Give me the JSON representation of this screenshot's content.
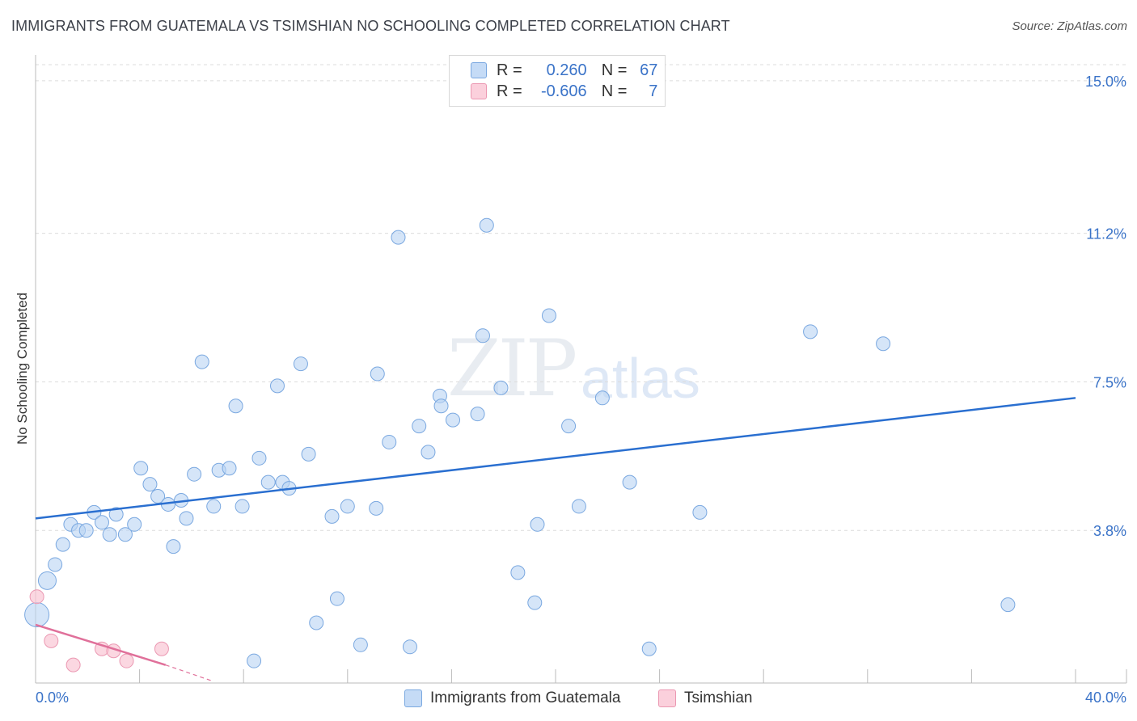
{
  "header": {
    "title": "IMMIGRANTS FROM GUATEMALA VS TSIMSHIAN NO SCHOOLING COMPLETED CORRELATION CHART",
    "source": "Source: ZipAtlas.com"
  },
  "watermark": {
    "zip": "ZIP",
    "atlas": "atlas"
  },
  "legend": {
    "rows": [
      {
        "r_label": "R =",
        "r_value": "0.260",
        "n_label": "N =",
        "n_value": "67",
        "color": "#a9c8f0"
      },
      {
        "r_label": "R =",
        "r_value": "-0.606",
        "n_label": "N =",
        "n_value": "7",
        "color": "#f5b8c8"
      }
    ]
  },
  "bottom_legend": {
    "series1": "Immigrants from Guatemala",
    "series2": "Tsimshian"
  },
  "colors": {
    "blue_fill": "#b9d3f3",
    "blue_stroke": "#7aa8e0",
    "blue_line": "#2a6fd0",
    "pink_fill": "#f9c6d4",
    "pink_stroke": "#eb98b2",
    "pink_line": "#e0709a",
    "axis_text": "#3a73c8"
  },
  "chart_data": {
    "type": "scatter",
    "title": "IMMIGRANTS FROM GUATEMALA VS TSIMSHIAN NO SCHOOLING COMPLETED CORRELATION CHART",
    "xlabel": "",
    "ylabel": "No Schooling Completed",
    "xlim": [
      0,
      40
    ],
    "ylim": [
      0,
      15.4
    ],
    "x_tick_labels": [
      "0.0%",
      "40.0%"
    ],
    "y_ticks": [
      3.8,
      7.5,
      11.2,
      15.0
    ],
    "y_tick_labels": [
      "3.8%",
      "7.5%",
      "11.2%",
      "15.0%"
    ],
    "grid": true,
    "series": [
      {
        "name": "Immigrants from Guatemala",
        "trend": {
          "x": [
            0,
            40
          ],
          "y": [
            4.1,
            7.1
          ]
        },
        "points": [
          {
            "x": 0.05,
            "y": 1.7,
            "s": 3
          },
          {
            "x": 0.45,
            "y": 2.55,
            "s": 2
          },
          {
            "x": 0.75,
            "y": 2.95,
            "s": 1
          },
          {
            "x": 1.05,
            "y": 3.45,
            "s": 1
          },
          {
            "x": 1.35,
            "y": 3.95,
            "s": 1
          },
          {
            "x": 1.65,
            "y": 3.8,
            "s": 1
          },
          {
            "x": 1.95,
            "y": 3.8,
            "s": 1
          },
          {
            "x": 2.25,
            "y": 4.25,
            "s": 1
          },
          {
            "x": 2.55,
            "y": 4.0,
            "s": 1
          },
          {
            "x": 2.85,
            "y": 3.7,
            "s": 1
          },
          {
            "x": 3.1,
            "y": 4.2,
            "s": 1
          },
          {
            "x": 3.45,
            "y": 3.7,
            "s": 1
          },
          {
            "x": 3.8,
            "y": 3.95,
            "s": 1
          },
          {
            "x": 4.05,
            "y": 5.35,
            "s": 1
          },
          {
            "x": 4.4,
            "y": 4.95,
            "s": 1
          },
          {
            "x": 4.7,
            "y": 4.65,
            "s": 1
          },
          {
            "x": 5.1,
            "y": 4.45,
            "s": 1
          },
          {
            "x": 5.3,
            "y": 3.4,
            "s": 1
          },
          {
            "x": 5.6,
            "y": 4.55,
            "s": 1
          },
          {
            "x": 5.8,
            "y": 4.1,
            "s": 1
          },
          {
            "x": 6.1,
            "y": 5.2,
            "s": 1
          },
          {
            "x": 6.4,
            "y": 8.0,
            "s": 1
          },
          {
            "x": 6.85,
            "y": 4.4,
            "s": 1
          },
          {
            "x": 7.05,
            "y": 5.3,
            "s": 1
          },
          {
            "x": 7.45,
            "y": 5.35,
            "s": 1
          },
          {
            "x": 7.7,
            "y": 6.9,
            "s": 1
          },
          {
            "x": 7.95,
            "y": 4.4,
            "s": 1
          },
          {
            "x": 8.4,
            "y": 0.55,
            "s": 1
          },
          {
            "x": 8.6,
            "y": 5.6,
            "s": 1
          },
          {
            "x": 8.95,
            "y": 5.0,
            "s": 1
          },
          {
            "x": 9.3,
            "y": 7.4,
            "s": 1
          },
          {
            "x": 9.5,
            "y": 5.0,
            "s": 1
          },
          {
            "x": 9.75,
            "y": 4.85,
            "s": 1
          },
          {
            "x": 10.2,
            "y": 7.95,
            "s": 1
          },
          {
            "x": 10.5,
            "y": 5.7,
            "s": 1
          },
          {
            "x": 10.8,
            "y": 1.5,
            "s": 1
          },
          {
            "x": 11.4,
            "y": 4.15,
            "s": 1
          },
          {
            "x": 11.6,
            "y": 2.1,
            "s": 1
          },
          {
            "x": 12.0,
            "y": 4.4,
            "s": 1
          },
          {
            "x": 12.5,
            "y": 0.95,
            "s": 1
          },
          {
            "x": 13.1,
            "y": 4.35,
            "s": 1
          },
          {
            "x": 13.15,
            "y": 7.7,
            "s": 1
          },
          {
            "x": 13.6,
            "y": 6.0,
            "s": 1
          },
          {
            "x": 13.95,
            "y": 11.1,
            "s": 1
          },
          {
            "x": 14.4,
            "y": 0.9,
            "s": 1
          },
          {
            "x": 14.75,
            "y": 6.4,
            "s": 1
          },
          {
            "x": 15.1,
            "y": 5.75,
            "s": 1
          },
          {
            "x": 15.55,
            "y": 7.15,
            "s": 1
          },
          {
            "x": 15.6,
            "y": 6.9,
            "s": 1
          },
          {
            "x": 16.05,
            "y": 6.55,
            "s": 1
          },
          {
            "x": 17.0,
            "y": 6.7,
            "s": 1
          },
          {
            "x": 17.2,
            "y": 8.65,
            "s": 1
          },
          {
            "x": 17.35,
            "y": 11.4,
            "s": 1
          },
          {
            "x": 17.9,
            "y": 7.35,
            "s": 1
          },
          {
            "x": 18.55,
            "y": 2.75,
            "s": 1
          },
          {
            "x": 19.2,
            "y": 2.0,
            "s": 1
          },
          {
            "x": 19.3,
            "y": 3.95,
            "s": 1
          },
          {
            "x": 19.75,
            "y": 9.15,
            "s": 1
          },
          {
            "x": 20.5,
            "y": 6.4,
            "s": 1
          },
          {
            "x": 20.9,
            "y": 4.4,
            "s": 1
          },
          {
            "x": 21.8,
            "y": 7.1,
            "s": 1
          },
          {
            "x": 22.85,
            "y": 5.0,
            "s": 1
          },
          {
            "x": 23.6,
            "y": 0.85,
            "s": 1
          },
          {
            "x": 25.55,
            "y": 4.25,
            "s": 1
          },
          {
            "x": 29.8,
            "y": 8.75,
            "s": 1
          },
          {
            "x": 32.6,
            "y": 8.45,
            "s": 1
          },
          {
            "x": 37.4,
            "y": 1.95,
            "s": 1
          }
        ]
      },
      {
        "name": "Tsimshian",
        "trend": {
          "x": [
            0,
            5.0
          ],
          "y": [
            1.45,
            0.45
          ]
        },
        "trend_dashed": {
          "x": [
            5.0,
            6.8
          ],
          "y": [
            0.45,
            0.05
          ]
        },
        "points": [
          {
            "x": 0.05,
            "y": 2.15,
            "s": 1
          },
          {
            "x": 0.6,
            "y": 1.05,
            "s": 1
          },
          {
            "x": 1.45,
            "y": 0.45,
            "s": 1
          },
          {
            "x": 2.55,
            "y": 0.85,
            "s": 1
          },
          {
            "x": 3.0,
            "y": 0.8,
            "s": 1
          },
          {
            "x": 3.5,
            "y": 0.55,
            "s": 1
          },
          {
            "x": 4.85,
            "y": 0.85,
            "s": 1
          }
        ]
      }
    ]
  }
}
